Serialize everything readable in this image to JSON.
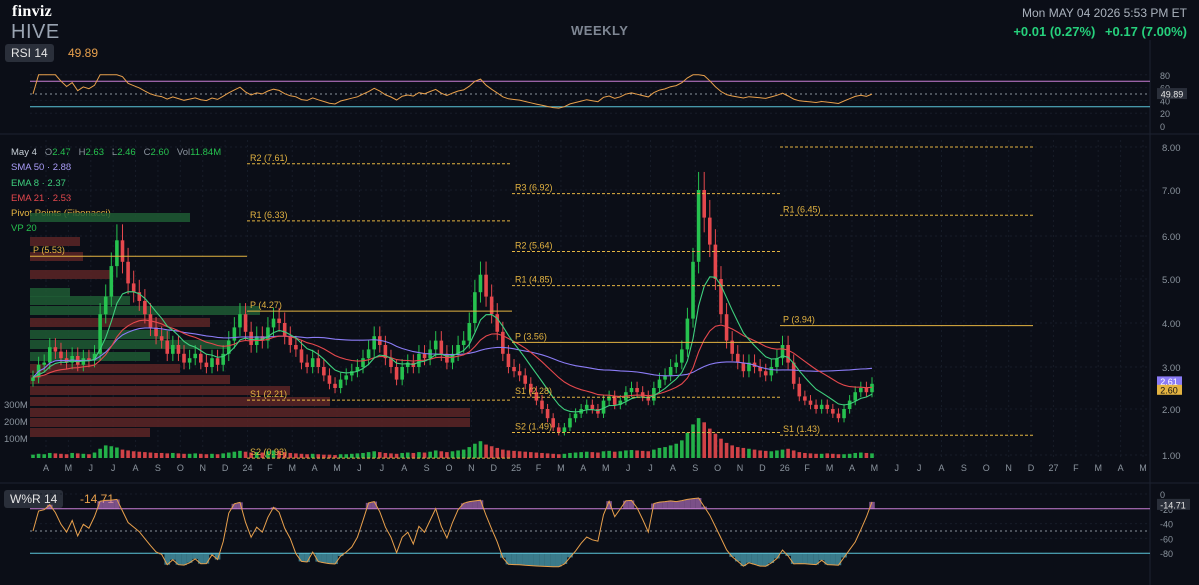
{
  "header": {
    "logo": "finviz",
    "ticker": "HIVE",
    "period": "WEEKLY",
    "datetime": "Mon MAY 04 2026 5:53 PM ET",
    "change_1": "+0.01 (0.27%)",
    "change_2": "+0.17 (7.00%)"
  },
  "colors": {
    "up": "#26c24f",
    "down": "#e5484d",
    "sma50": "#8b7cf6",
    "ema8": "#3fd07e",
    "ema21": "#e5484d",
    "pivot": "#e3b341",
    "rsi": "#e8a04c",
    "band": "#c77dd4",
    "cyan": "#5bc4d8"
  },
  "ohlc": {
    "date": "May 4",
    "o_label": "O",
    "o": "2.47",
    "h_label": "H",
    "h": "2.63",
    "l_label": "L",
    "l": "2.46",
    "c_label": "C",
    "c": "2.60",
    "vol_label": "Vol",
    "vol": "11.84M"
  },
  "indicators": {
    "sma50": "SMA 50 · 2.88",
    "ema8": "EMA 8 · 2.37",
    "ema21": "EMA 21 · 2.53",
    "pivots": "Pivot Points (Fibonacci)",
    "vp": "VP 20"
  },
  "rsi": {
    "label": "RSI 14",
    "value": "49.89",
    "ticks": [
      "80",
      "60",
      "40",
      "20",
      "0"
    ],
    "levels": [
      70,
      30
    ],
    "ylim": [
      0,
      100
    ]
  },
  "wr": {
    "label": "W%R 14",
    "value": "-14.71",
    "ticks": [
      "0",
      "-20",
      "-40",
      "-60",
      "-80"
    ],
    "levels": [
      -20,
      -80
    ],
    "ylim": [
      -100,
      0
    ]
  },
  "chart_data": {
    "type": "candlestick",
    "y_axis_ticks": [
      "8.00",
      "7.00",
      "6.00",
      "5.00",
      "4.00",
      "3.00",
      "2.00",
      "1.00"
    ],
    "ylim": [
      1.0,
      8.0
    ],
    "last_labels": [
      "2.61",
      "2.60"
    ],
    "volume_ticks": [
      "300M",
      "200M",
      "100M"
    ],
    "x_ticks": [
      "A",
      "M",
      "J",
      "J",
      "A",
      "S",
      "O",
      "N",
      "D",
      "24",
      "F",
      "M",
      "A",
      "M",
      "J",
      "J",
      "A",
      "S",
      "O",
      "N",
      "D",
      "25",
      "F",
      "M",
      "A",
      "M",
      "J",
      "J",
      "A",
      "S",
      "O",
      "N",
      "D",
      "26",
      "F",
      "M",
      "A",
      "M",
      "J",
      "J",
      "A",
      "S",
      "O",
      "N",
      "D",
      "27",
      "F",
      "M",
      "A",
      "M"
    ],
    "closes": [
      2.75,
      3.05,
      3.1,
      3.45,
      3.35,
      3.2,
      3.1,
      3.25,
      3.05,
      3.2,
      3.15,
      3.3,
      4.2,
      4.6,
      5.3,
      5.9,
      5.4,
      4.9,
      4.7,
      4.5,
      4.2,
      3.9,
      3.7,
      3.6,
      3.3,
      3.5,
      3.3,
      3.1,
      3.2,
      3.3,
      3.1,
      3.0,
      3.2,
      3.05,
      3.3,
      3.6,
      3.9,
      4.2,
      3.8,
      3.5,
      3.7,
      3.6,
      3.9,
      4.1,
      4.0,
      3.7,
      3.5,
      3.4,
      3.1,
      3.0,
      3.2,
      3.0,
      2.8,
      2.6,
      2.5,
      2.7,
      2.8,
      2.9,
      3.0,
      3.2,
      3.4,
      3.7,
      3.5,
      3.2,
      3.0,
      2.7,
      3.0,
      3.1,
      3.0,
      3.3,
      3.2,
      3.4,
      3.6,
      3.3,
      3.1,
      3.3,
      3.5,
      3.6,
      4.0,
      4.7,
      5.1,
      4.6,
      4.2,
      3.8,
      3.3,
      3.0,
      2.9,
      2.8,
      2.6,
      2.4,
      2.2,
      2.0,
      1.8,
      1.6,
      1.5,
      1.6,
      1.8,
      1.9,
      2.0,
      2.1,
      2.0,
      1.9,
      2.2,
      2.3,
      2.1,
      2.2,
      2.4,
      2.5,
      2.4,
      2.3,
      2.2,
      2.5,
      2.7,
      2.8,
      3.0,
      3.1,
      3.4,
      4.1,
      5.4,
      7.0,
      6.4,
      5.8,
      5.0,
      4.2,
      3.6,
      3.3,
      3.1,
      2.9,
      3.1,
      3.0,
      2.9,
      2.8,
      3.0,
      3.2,
      3.5,
      3.1,
      2.6,
      2.3,
      2.2,
      2.1,
      2.0,
      2.1,
      2.0,
      1.9,
      1.8,
      2.0,
      2.2,
      2.4,
      2.5,
      2.4,
      2.6
    ],
    "volumes": [
      8,
      10,
      9,
      12,
      11,
      10,
      9,
      12,
      11,
      10,
      9,
      13,
      22,
      30,
      28,
      25,
      20,
      18,
      16,
      15,
      14,
      13,
      12,
      12,
      11,
      12,
      11,
      10,
      10,
      11,
      10,
      9,
      10,
      9,
      11,
      13,
      15,
      17,
      15,
      13,
      14,
      13,
      16,
      18,
      17,
      14,
      12,
      11,
      10,
      9,
      10,
      9,
      8,
      8,
      7,
      9,
      9,
      10,
      11,
      12,
      14,
      16,
      14,
      12,
      11,
      10,
      12,
      13,
      12,
      14,
      13,
      15,
      18,
      16,
      14,
      16,
      18,
      20,
      26,
      34,
      40,
      32,
      28,
      24,
      20,
      18,
      17,
      16,
      15,
      14,
      13,
      12,
      11,
      10,
      9,
      10,
      12,
      13,
      14,
      15,
      14,
      13,
      16,
      17,
      15,
      16,
      18,
      19,
      18,
      17,
      16,
      20,
      24,
      26,
      30,
      34,
      42,
      60,
      80,
      95,
      85,
      70,
      58,
      46,
      36,
      30,
      26,
      24,
      22,
      20,
      18,
      17,
      16,
      18,
      20,
      22,
      18,
      14,
      12,
      11,
      10,
      10,
      11,
      10,
      9,
      9,
      10,
      12,
      13,
      12,
      11,
      6
    ],
    "pivots": [
      {
        "label": "P (5.53)",
        "value": 5.53,
        "color": "pivot"
      },
      {
        "label": "R1 (6.33)",
        "value": 6.33
      },
      {
        "label": "R2 (7.61)",
        "value": 7.61
      },
      {
        "label": "P (4.27)",
        "value": 4.27
      },
      {
        "label": "S1 (2.21)",
        "value": 2.21
      },
      {
        "label": "S2 (0.93)",
        "value": 0.93
      },
      {
        "label": "R3 (6.92)",
        "value": 6.92
      },
      {
        "label": "R2 (5.64)",
        "value": 5.64
      },
      {
        "label": "R1 (4.85)",
        "value": 4.85
      },
      {
        "label": "P (3.56)",
        "value": 3.56
      },
      {
        "label": "S1 (2.28)",
        "value": 2.28
      },
      {
        "label": "S2 (1.49)",
        "value": 1.49
      },
      {
        "label": "R1 (6.45)",
        "value": 6.45
      },
      {
        "label": "P (3.94)",
        "value": 3.94
      },
      {
        "label": "S1 (1.43)",
        "value": 1.43
      }
    ]
  }
}
